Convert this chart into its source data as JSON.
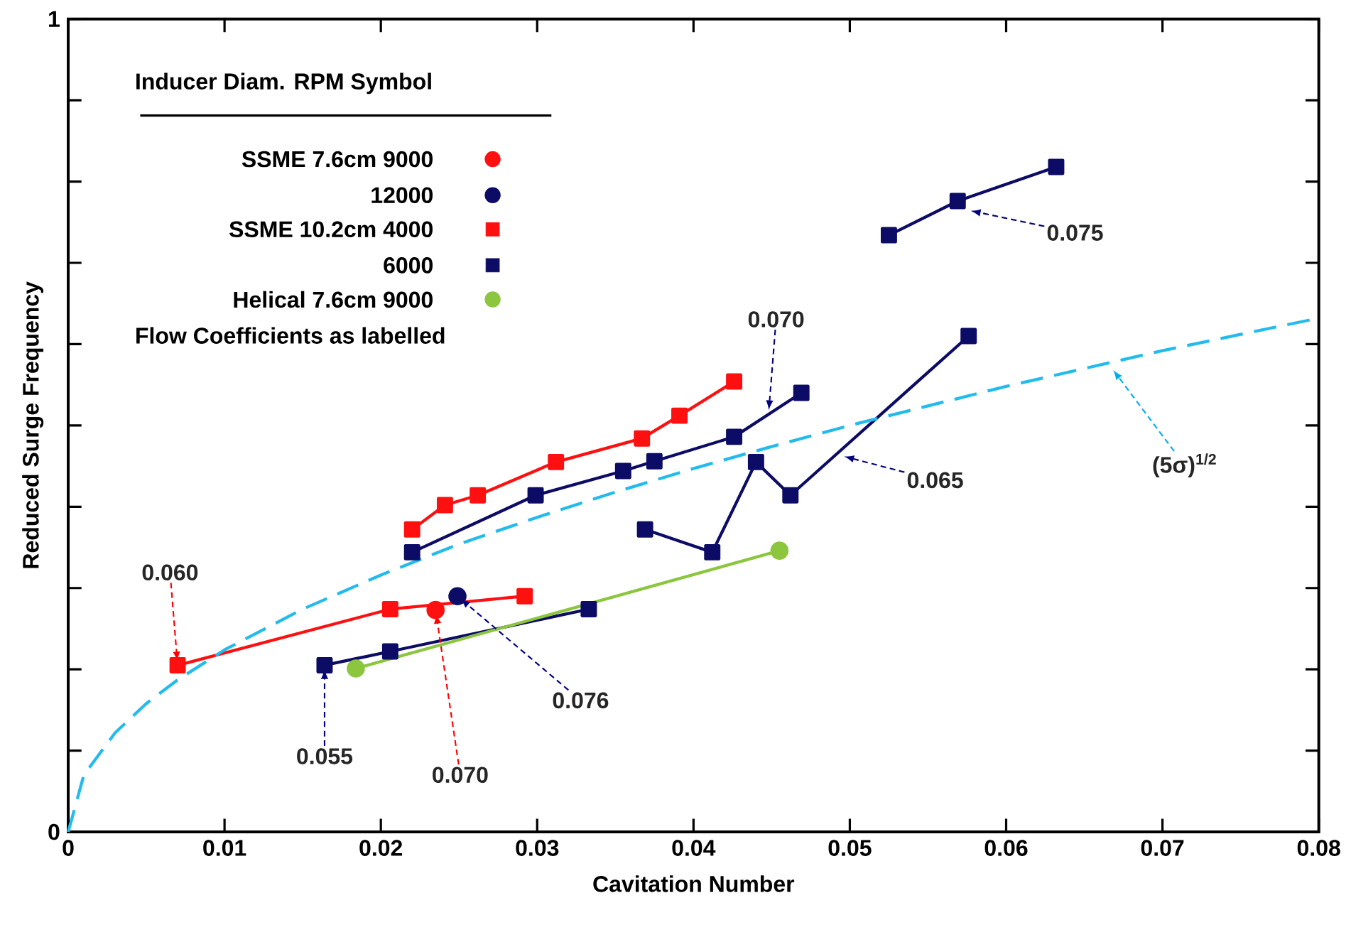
{
  "chart_data": {
    "type": "line",
    "xlabel": "Cavitation Number",
    "ylabel": "Reduced Surge Frequency",
    "legend_title": "Inducer Diam. RPM Symbol",
    "legend": "top left",
    "xlim": [
      0,
      0.08
    ],
    "ylim": [
      0,
      1
    ],
    "xticks": [
      0,
      0.01,
      0.02,
      0.03,
      0.04,
      0.05,
      0.06,
      0.07,
      0.08
    ],
    "yticks": [
      0,
      {
        "value": 0.1,
        "label": null
      },
      {
        "value": 0.2,
        "label": null
      },
      {
        "value": 0.3,
        "label": null
      },
      {
        "value": 0.4,
        "label": null
      },
      {
        "value": 0.5,
        "label": null
      },
      {
        "value": 0.6,
        "label": null
      },
      {
        "value": 0.7,
        "label": null
      },
      {
        "value": 0.8,
        "label": null
      },
      {
        "value": 0.9,
        "label": null
      },
      1
    ],
    "series": [
      {
        "name": "SSME 7.6cm 9000",
        "color": "#ff1010",
        "marker": "circle",
        "type": "scatter",
        "x": [
          0.0235
        ],
        "values": [
          0.273
        ]
      },
      {
        "name": "12000",
        "color": "#0c0c66",
        "marker": "circle",
        "type": "scatter",
        "x": [
          0.0249
        ],
        "values": [
          0.29
        ]
      },
      {
        "name": "SSME 10.2cm 4000",
        "color": "#ff1010",
        "marker": "square",
        "x": [
          0.007,
          0.0206,
          0.0292,
          null,
          0.022,
          0.0241,
          0.0262,
          0.0312,
          0.0367,
          0.0391,
          0.0426
        ],
        "values": [
          0.205,
          0.274,
          0.29,
          null,
          0.372,
          0.402,
          0.414,
          0.455,
          0.484,
          0.512,
          0.554
        ]
      },
      {
        "name": "6000",
        "color": "#0c0c66",
        "marker": "square",
        "x": [
          0.0164,
          0.0206,
          0.0333,
          null,
          0.022,
          0.0299,
          0.0355,
          0.0375,
          0.0426,
          0.0469,
          null,
          0.0369,
          0.0412,
          0.044,
          0.0462,
          0.0576,
          null,
          0.0525,
          0.0569,
          0.0632
        ],
        "values": [
          0.205,
          0.222,
          0.274,
          null,
          0.344,
          0.414,
          0.444,
          0.456,
          0.486,
          0.54,
          null,
          0.372,
          0.344,
          0.455,
          0.414,
          0.61,
          null,
          0.734,
          0.776,
          0.818
        ]
      },
      {
        "name": "Helical 7.6cm 9000",
        "color": "#8cc63f",
        "marker": "circle",
        "x": [
          0.0184,
          0.0455
        ],
        "values": [
          0.201,
          0.346
        ]
      },
      {
        "color": "#22bbee",
        "marker": "none",
        "line_style": "dashed",
        "x": [
          0,
          0.001,
          0.003,
          0.005,
          0.007,
          0.01,
          0.015,
          0.02,
          0.025,
          0.03,
          0.035,
          0.04,
          0.045,
          0.05,
          0.055,
          0.06,
          0.065,
          0.07,
          0.075,
          0.08
        ],
        "values": [
          0,
          0.07,
          0.122,
          0.158,
          0.187,
          0.224,
          0.274,
          0.316,
          0.354,
          0.387,
          0.418,
          0.447,
          0.474,
          0.5,
          0.524,
          0.548,
          0.57,
          0.592,
          0.612,
          0.632
        ]
      }
    ],
    "annotations": [
      "Flow Coefficients as labelled",
      {
        "text": "0.060",
        "x": 0.007,
        "y": 0.205
      },
      {
        "text": "0.055",
        "x": 0.0164,
        "y": 0.205
      },
      {
        "text": "0.070",
        "x": 0.0235,
        "y": 0.273
      },
      {
        "text": "0.076",
        "x": 0.0249,
        "y": 0.29
      },
      {
        "text": "0.070",
        "x": 0.0448,
        "y": 0.514
      },
      {
        "text": "0.075",
        "x": 0.0575,
        "y": 0.765
      },
      {
        "text": "0.065",
        "x": 0.0494,
        "y": 0.463
      },
      {
        "text": "(5σ)$^{1/2}$",
        "x": 0.0667,
        "y": 0.572
      }
    ]
  }
}
